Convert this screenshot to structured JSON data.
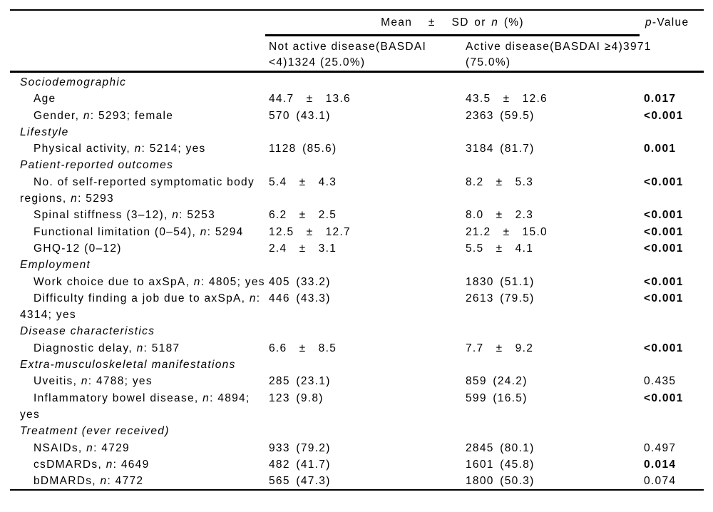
{
  "header": {
    "mean_sd_label": "Mean   ±   SD or *n* (%)",
    "p_value_label": "*p*-Value",
    "group1_lines": [
      "Not active disease(BASDAI",
      "<4)1324 (25.0%)"
    ],
    "group2_lines": [
      "Active disease(BASDAI ≥4)3971",
      "(75.0%)"
    ]
  },
  "rows": [
    {
      "type": "section",
      "label_lines": [
        "Sociodemographic"
      ]
    },
    {
      "type": "data",
      "label_lines": [
        "Age"
      ],
      "group1": "44.7  ±  13.6",
      "group2": "43.5  ±  12.6",
      "p_value": "0.017",
      "p_bold": true
    },
    {
      "type": "data",
      "label_lines": [
        "Gender, *n*: 5293; female"
      ],
      "group1": "570 (43.1)",
      "group2": "2363 (59.5)",
      "p_value": "<0.001",
      "p_bold": true
    },
    {
      "type": "section",
      "label_lines": [
        "Lifestyle"
      ]
    },
    {
      "type": "data",
      "label_lines": [
        "Physical activity, *n*: 5214; yes"
      ],
      "group1": "1128 (85.6)",
      "group2": "3184 (81.7)",
      "p_value": "0.001",
      "p_bold": true
    },
    {
      "type": "section",
      "label_lines": [
        "Patient-reported outcomes"
      ]
    },
    {
      "type": "data",
      "label_lines": [
        "No. of self-reported symptomatic body",
        "regions, *n*: 5293"
      ],
      "group1": "5.4  ±  4.3",
      "group2": "8.2  ±  5.3",
      "p_value": "<0.001",
      "p_bold": true
    },
    {
      "type": "data",
      "label_lines": [
        "Spinal stiffness (3–12), *n*: 5253"
      ],
      "group1": "6.2  ±  2.5",
      "group2": "8.0  ±  2.3",
      "p_value": "<0.001",
      "p_bold": true
    },
    {
      "type": "data",
      "label_lines": [
        "Functional limitation (0–54), *n*: 5294"
      ],
      "group1": "12.5  ±  12.7",
      "group2": "21.2  ±  15.0",
      "p_value": "<0.001",
      "p_bold": true
    },
    {
      "type": "data",
      "label_lines": [
        "GHQ-12 (0–12)"
      ],
      "group1": "2.4  ±  3.1",
      "group2": "5.5  ±  4.1",
      "p_value": "<0.001",
      "p_bold": true
    },
    {
      "type": "section",
      "label_lines": [
        "Employment"
      ]
    },
    {
      "type": "data",
      "label_lines": [
        "Work choice due to axSpA, *n*: 4805; yes"
      ],
      "group1": "405 (33.2)",
      "group2": "1830 (51.1)",
      "p_value": "<0.001",
      "p_bold": true
    },
    {
      "type": "data",
      "label_lines": [
        "Difficulty finding a job due to axSpA, *n*:",
        "4314; yes"
      ],
      "group1": "446 (43.3)",
      "group2": "2613 (79.5)",
      "p_value": "<0.001",
      "p_bold": true
    },
    {
      "type": "section",
      "label_lines": [
        "Disease characteristics"
      ]
    },
    {
      "type": "data",
      "label_lines": [
        "Diagnostic delay, *n*: 5187"
      ],
      "group1": "6.6  ±  8.5",
      "group2": "7.7  ±  9.2",
      "p_value": "<0.001",
      "p_bold": true
    },
    {
      "type": "section",
      "label_lines": [
        "Extra-musculoskeletal manifestations"
      ]
    },
    {
      "type": "data",
      "label_lines": [
        "Uveitis, *n*: 4788; yes"
      ],
      "group1": "285 (23.1)",
      "group2": "859 (24.2)",
      "p_value": "0.435",
      "p_bold": false
    },
    {
      "type": "data",
      "label_lines": [
        "Inflammatory bowel disease, *n*: 4894;",
        "yes"
      ],
      "group1": "123 (9.8)",
      "group2": "599 (16.5)",
      "p_value": "<0.001",
      "p_bold": true
    },
    {
      "type": "section",
      "label_lines": [
        "Treatment (ever received)"
      ]
    },
    {
      "type": "data",
      "label_lines": [
        "NSAIDs, *n*: 4729"
      ],
      "group1": "933 (79.2)",
      "group2": "2845 (80.1)",
      "p_value": "0.497",
      "p_bold": false
    },
    {
      "type": "data",
      "label_lines": [
        "csDMARDs, *n*: 4649"
      ],
      "group1": "482 (41.7)",
      "group2": "1601 (45.8)",
      "p_value": "0.014",
      "p_bold": true
    },
    {
      "type": "data",
      "label_lines": [
        "bDMARDs, *n*: 4772"
      ],
      "group1": "565 (47.3)",
      "group2": "1800 (50.3)",
      "p_value": "0.074",
      "p_bold": false
    }
  ]
}
